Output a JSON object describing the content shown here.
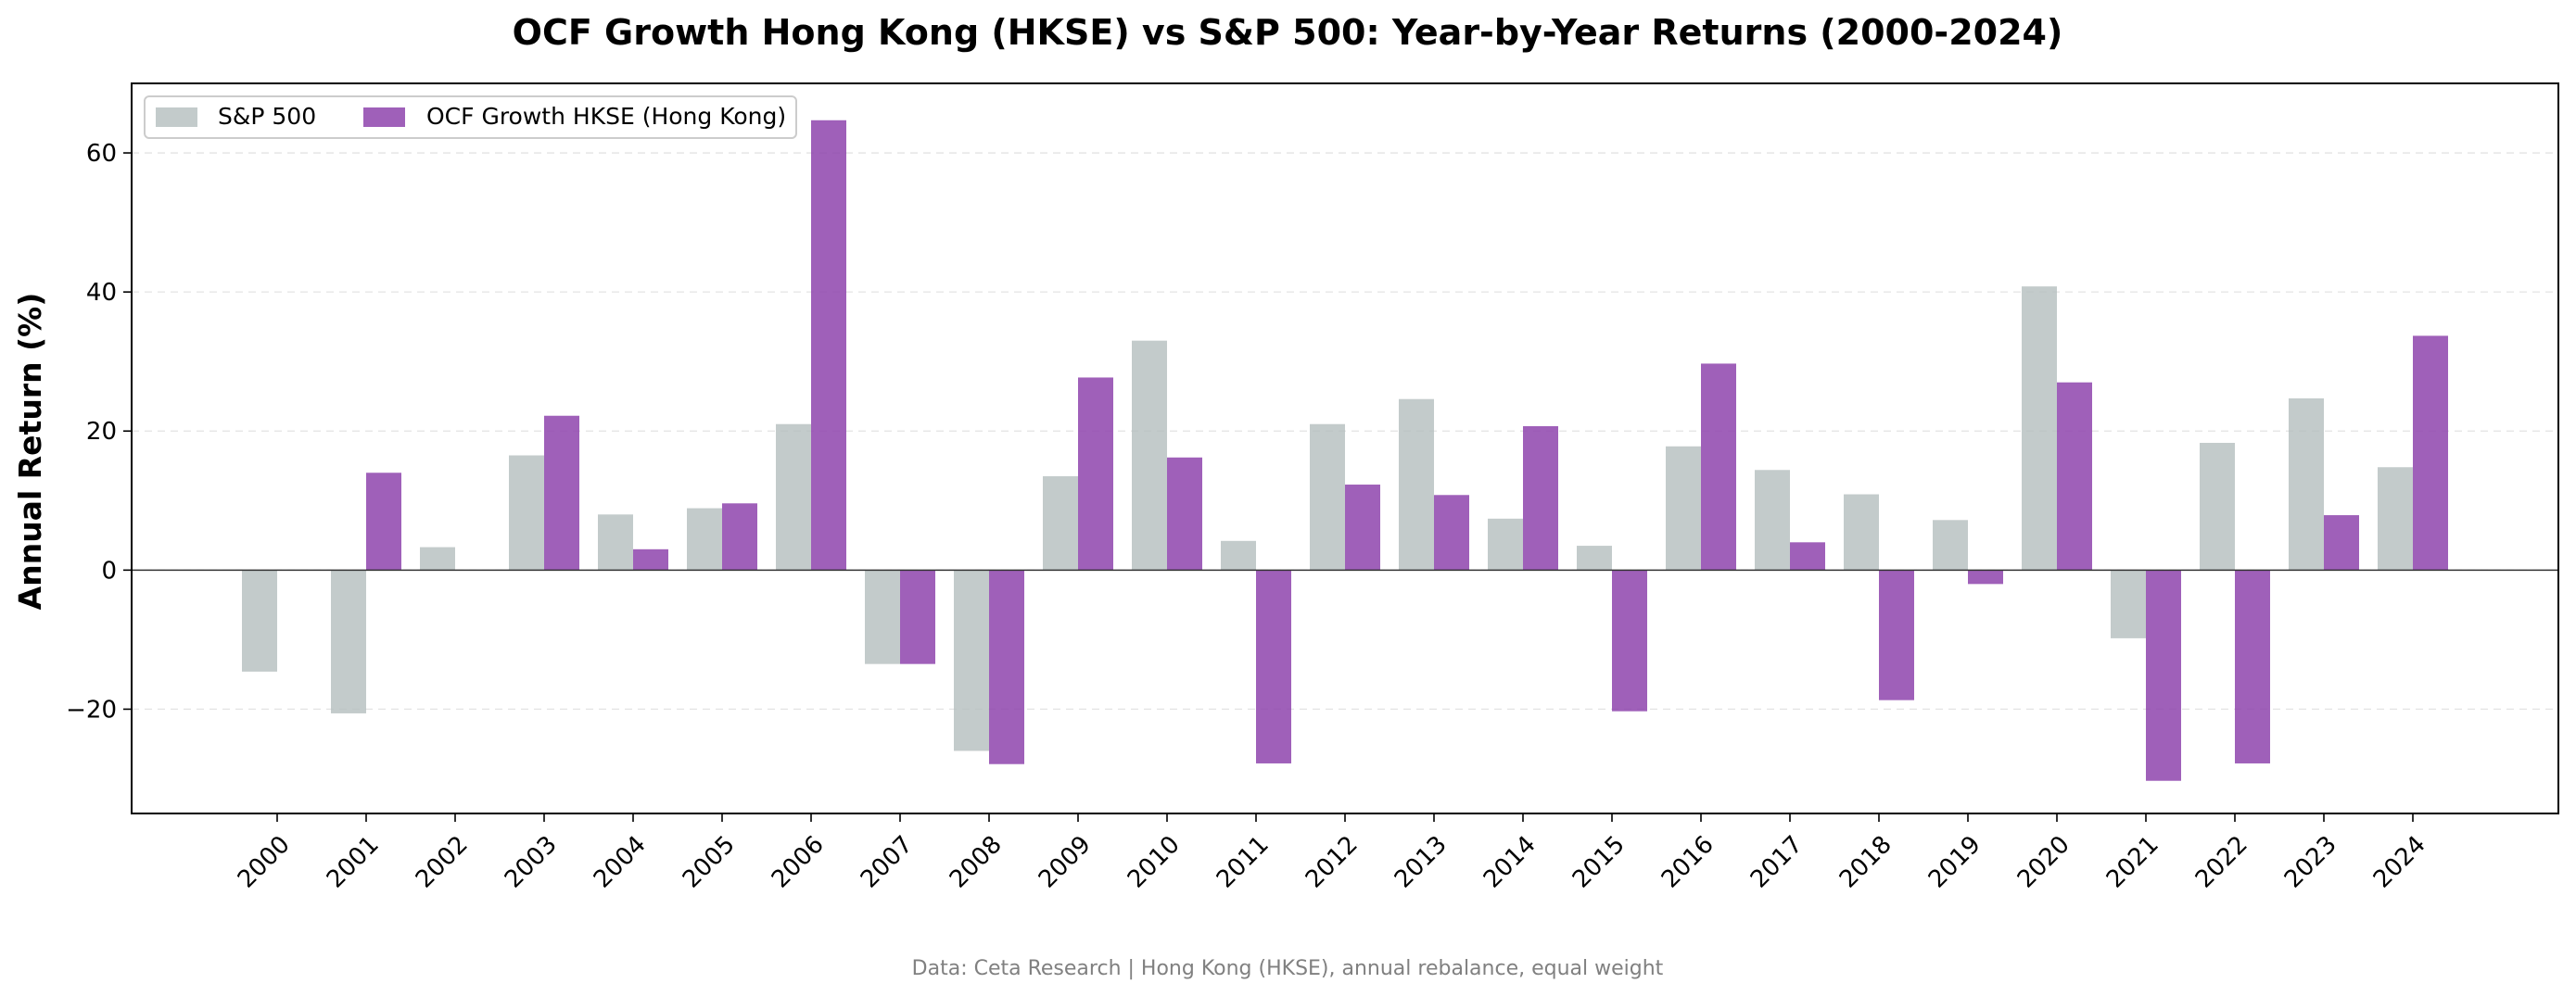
{
  "chart_data": {
    "type": "bar",
    "title": "OCF Growth Hong Kong (HKSE) vs S&P 500: Year-by-Year Returns (2000-2024)",
    "xlabel": "",
    "ylabel": "Annual Return (%)",
    "ylim": [
      -35,
      70
    ],
    "yticks": [
      -20,
      0,
      20,
      40,
      60
    ],
    "ytick_labels": [
      "−20",
      "0",
      "20",
      "40",
      "60"
    ],
    "grid": "horizontal-dashed",
    "legend_position": "top-left",
    "categories": [
      "2000",
      "2001",
      "2002",
      "2003",
      "2004",
      "2005",
      "2006",
      "2007",
      "2008",
      "2009",
      "2010",
      "2011",
      "2012",
      "2013",
      "2014",
      "2015",
      "2016",
      "2017",
      "2018",
      "2019",
      "2020",
      "2021",
      "2022",
      "2023",
      "2024"
    ],
    "series": [
      {
        "name": "S&P 500",
        "color": "#b4bebe",
        "values": [
          -14.6,
          -20.6,
          3.3,
          16.5,
          8.0,
          8.9,
          21.0,
          -13.5,
          -26.0,
          13.5,
          33.0,
          4.2,
          21.0,
          24.6,
          7.4,
          3.5,
          17.8,
          14.4,
          10.9,
          7.2,
          40.8,
          -9.8,
          18.3,
          24.7,
          14.8
        ]
      },
      {
        "name": "OCF Growth HKSE (Hong Kong)",
        "color": "#8e44ad",
        "values": [
          0,
          14.0,
          0,
          22.2,
          3.0,
          9.6,
          64.7,
          -13.5,
          -27.9,
          27.7,
          16.2,
          -27.8,
          12.3,
          10.8,
          20.7,
          -20.3,
          29.7,
          4.0,
          -18.7,
          -2.0,
          27.0,
          -30.3,
          -27.8,
          7.9,
          33.7
        ]
      }
    ],
    "source": "Data: Ceta Research | Hong Kong (HKSE), annual rebalance, equal weight"
  }
}
